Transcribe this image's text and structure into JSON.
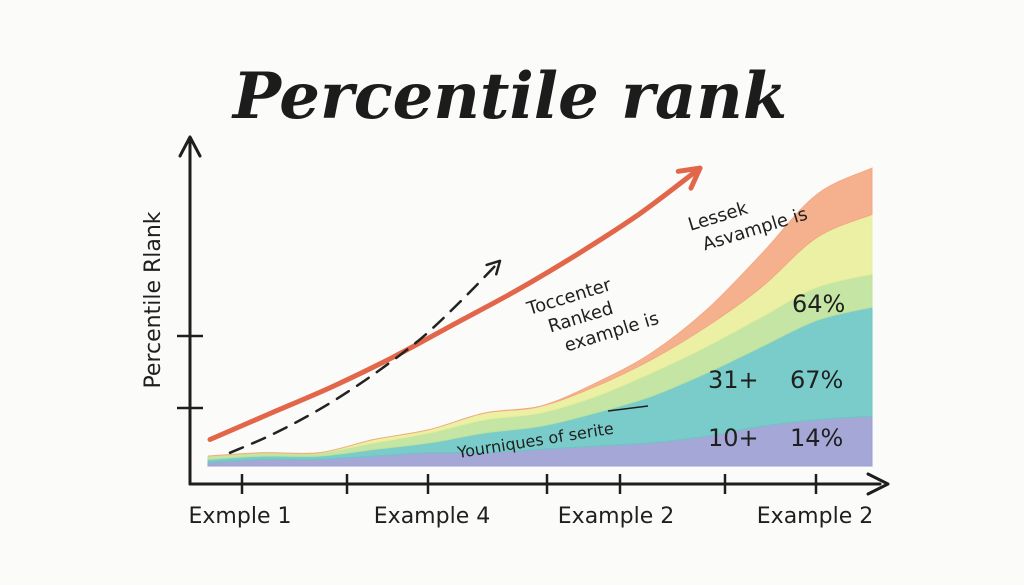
{
  "chart_data": {
    "type": "area",
    "title": "Percentile rank",
    "ylabel": "Percentile Rlank",
    "xlabel": "",
    "x_tick_labels": [
      "Exmple 1",
      "Example 4",
      "Example 2",
      "Example 2"
    ],
    "stacked": true,
    "x": [
      0,
      1,
      2,
      3,
      4,
      5,
      6,
      7,
      8,
      9,
      10,
      11,
      12
    ],
    "xlim": [
      0,
      12
    ],
    "ylim": [
      0,
      100
    ],
    "series": [
      {
        "color": "#9b9fd3",
        "values": [
          1,
          2,
          2,
          3,
          4,
          4,
          5,
          6,
          7,
          9,
          12,
          14,
          15
        ]
      },
      {
        "color": "#6cc7c4",
        "values": [
          1,
          1,
          1,
          2,
          3,
          6,
          7,
          10,
          14,
          19,
          24,
          30,
          33
        ]
      },
      {
        "color": "#bfe29a",
        "values": [
          1,
          1,
          1,
          2,
          3,
          4,
          4,
          5,
          7,
          8,
          9,
          10,
          10
        ]
      },
      {
        "color": "#e9ee9a",
        "values": [
          0,
          0,
          0,
          1,
          1,
          2,
          2,
          3,
          4,
          6,
          9,
          15,
          18
        ]
      },
      {
        "color": "#f4a882",
        "values": [
          0,
          0,
          0,
          0,
          0,
          0,
          0,
          1,
          2,
          5,
          10,
          13,
          14
        ]
      }
    ],
    "trend_arrow": {
      "color": "#e2664a",
      "values": [
        8,
        16,
        24,
        33,
        43,
        53,
        64,
        76,
        90
      ]
    },
    "dashed_arrow": {
      "color": "#222222",
      "values": [
        4,
        9,
        15,
        22,
        30,
        39,
        50,
        62
      ]
    },
    "value_labels": [
      "64%",
      "67%",
      "14%"
    ],
    "group_labels": [
      "31+",
      "10+"
    ],
    "annotations": [
      "Lessek",
      "Asvample is",
      "Toccenter",
      "Ranked",
      "example is",
      "Yourniques of serite"
    ]
  }
}
